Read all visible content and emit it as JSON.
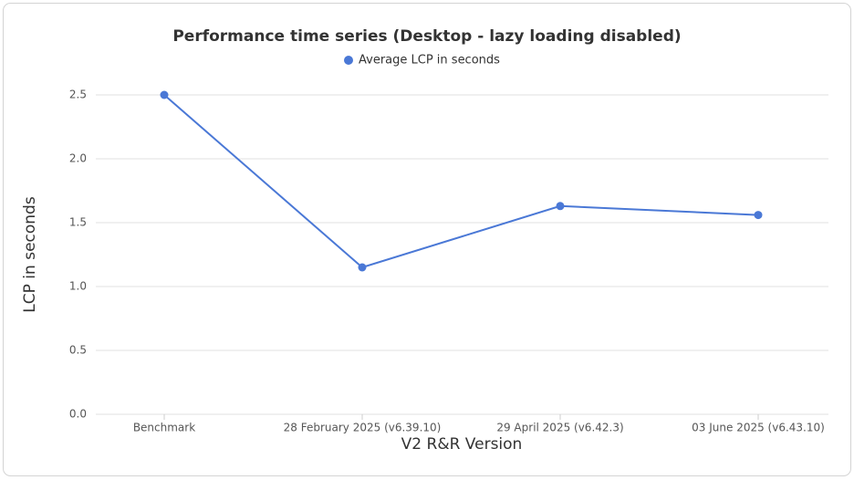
{
  "chart_data": {
    "type": "line",
    "title": "Performance time series (Desktop - lazy loading disabled)",
    "x_label": "V2 R&R Version",
    "y_label": "LCP in seconds",
    "categories": [
      "Benchmark",
      "28 February 2025 (v6.39.10)",
      "29 April 2025 (v6.42.3)",
      "03 June 2025 (v6.43.10)"
    ],
    "series": [
      {
        "name": "Average LCP in seconds",
        "color": "#4a78d6",
        "values": [
          2.5,
          1.15,
          1.63,
          1.56
        ]
      }
    ],
    "ylim": [
      0,
      2.5
    ],
    "yticks": [
      {
        "value": 0,
        "label": "0.0"
      },
      0.5,
      {
        "value": 1,
        "label": "1.0"
      },
      1.5,
      {
        "value": 2,
        "label": "2.0"
      },
      2.5
    ],
    "grid": true,
    "legend": "top"
  }
}
